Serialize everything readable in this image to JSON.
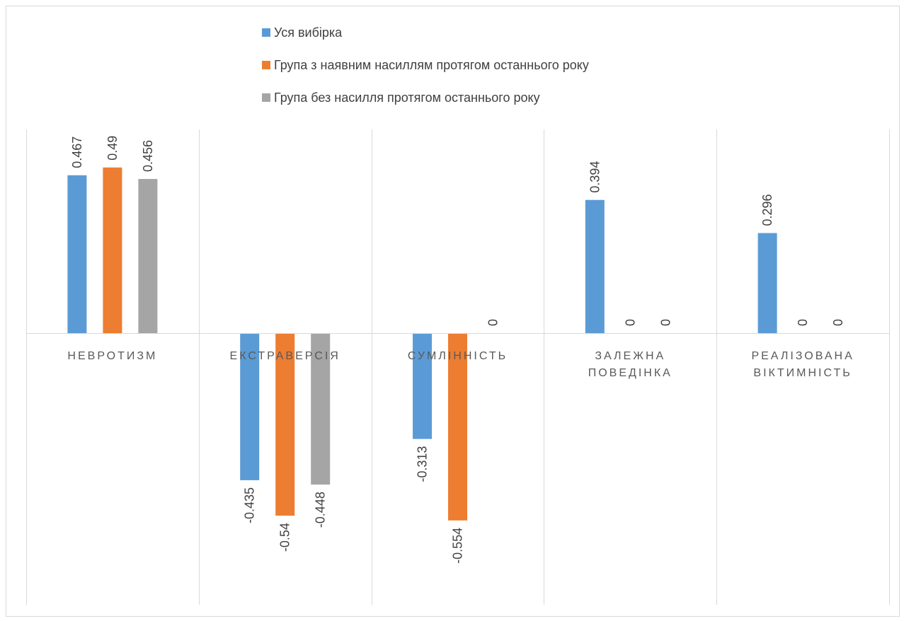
{
  "chart_data": {
    "type": "bar",
    "title": "",
    "xlabel": "",
    "ylabel": "",
    "ylim": [
      -0.7,
      0.6
    ],
    "grid": "vertical-category-separators",
    "legend_placement": "top",
    "categories": [
      [
        "НЕВРОТИЗМ"
      ],
      [
        "ЕКСТРАВЕРСІЯ"
      ],
      [
        "СУМЛІННІСТЬ"
      ],
      [
        "ЗАЛЕЖНА",
        "ПОВЕДІНКА"
      ],
      [
        "РЕАЛІЗОВАНА",
        "ВІКТИМНІСТЬ"
      ]
    ],
    "series": [
      {
        "name": "Уся вибірка",
        "color": "#5B9BD5",
        "values": [
          0.467,
          -0.435,
          -0.313,
          0.394,
          0.296
        ],
        "labels": [
          "0.467",
          "-0.435",
          "-0.313",
          "0.394",
          "0.296"
        ]
      },
      {
        "name": "Група з наявним насиллям протягом останнього року",
        "color": "#ED7D31",
        "values": [
          0.49,
          -0.54,
          -0.554,
          0,
          0
        ],
        "labels": [
          "0.49",
          "-0.54",
          "-0.554",
          "0",
          "0"
        ]
      },
      {
        "name": "Група без насилля протягом останнього року",
        "color": "#A5A5A5",
        "values": [
          0.456,
          -0.448,
          0,
          0,
          0
        ],
        "labels": [
          "0.456",
          "-0.448",
          "0",
          "0",
          "0"
        ]
      }
    ]
  }
}
